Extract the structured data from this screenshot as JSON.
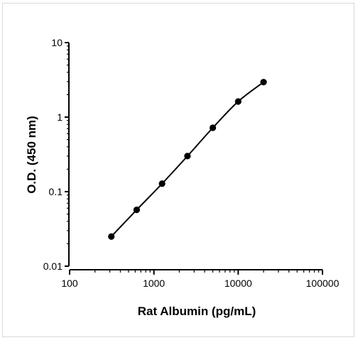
{
  "chart_data": {
    "type": "line",
    "title": "",
    "xlabel": "Rat Albumin (pg/mL)",
    "ylabel": "O.D. (450 nm)",
    "xscale": "log",
    "yscale": "log",
    "xlim": [
      100,
      100000
    ],
    "ylim": [
      0.01,
      10
    ],
    "x_ticks": [
      "100",
      "1000",
      "10000",
      "100000"
    ],
    "y_ticks": [
      "0.01",
      "0.1",
      "1",
      "10"
    ],
    "grid": false,
    "legend": "none",
    "series": [
      {
        "marker": "circle",
        "color": "#000000",
        "x": [
          312.5,
          625,
          1250,
          2500,
          5000,
          10000,
          20000
        ],
        "y": [
          0.025,
          0.057,
          0.128,
          0.3,
          0.72,
          1.62,
          2.95
        ]
      }
    ]
  }
}
